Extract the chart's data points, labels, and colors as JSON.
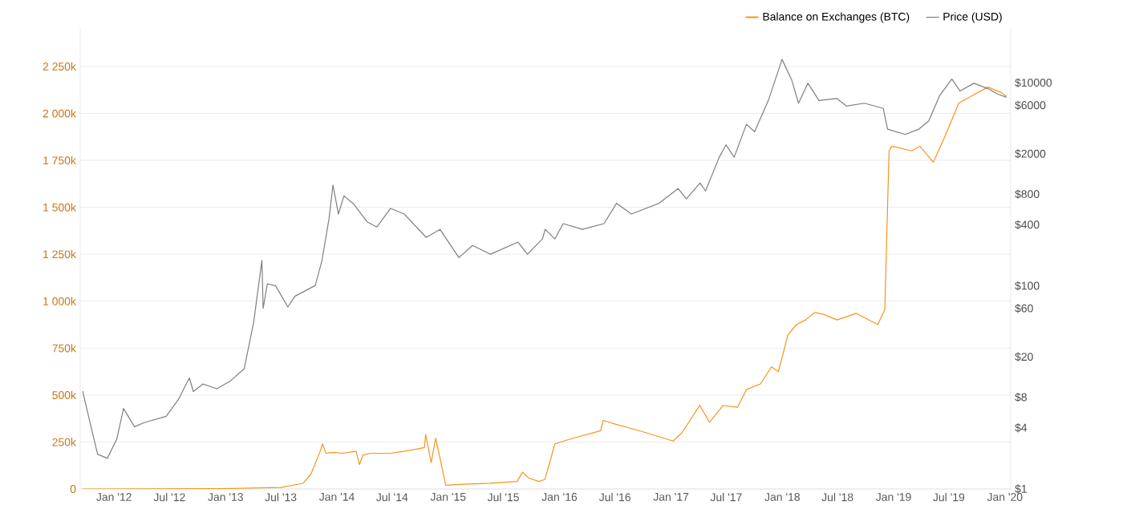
{
  "chart_data": {
    "type": "line",
    "legend": "top right",
    "grid": "y",
    "marker": "none",
    "line_style": "solid",
    "log": "y2",
    "xlim": [
      "2011-09-12",
      "2020-01-20"
    ],
    "xticks": [
      {
        "value": "2012-01-01",
        "label": "Jan '12"
      },
      {
        "value": "2012-07-01",
        "label": "Jul '12"
      },
      {
        "value": "2013-01-01",
        "label": "Jan '13"
      },
      {
        "value": "2013-07-01",
        "label": "Jul '13"
      },
      {
        "value": "2014-01-01",
        "label": "Jan '14"
      },
      {
        "value": "2014-07-01",
        "label": "Jul '14"
      },
      {
        "value": "2015-01-01",
        "label": "Jan '15"
      },
      {
        "value": "2015-07-01",
        "label": "Jul '15"
      },
      {
        "value": "2016-01-01",
        "label": "Jan '16"
      },
      {
        "value": "2016-07-01",
        "label": "Jul '16"
      },
      {
        "value": "2017-01-01",
        "label": "Jan '17"
      },
      {
        "value": "2017-07-01",
        "label": "Jul '17"
      },
      {
        "value": "2018-01-01",
        "label": "Jan '18"
      },
      {
        "value": "2018-07-01",
        "label": "Jul '18"
      },
      {
        "value": "2019-01-01",
        "label": "Jan '19"
      },
      {
        "value": "2019-07-01",
        "label": "Jul '19"
      },
      {
        "value": "2020-01-01",
        "label": "Jan '20"
      }
    ],
    "ylim": [
      0,
      2450000
    ],
    "yticks": [
      {
        "value": 0,
        "label": "0"
      },
      {
        "value": 250000,
        "label": "250k"
      },
      {
        "value": 500000,
        "label": "500k"
      },
      {
        "value": 750000,
        "label": "750k"
      },
      {
        "value": 1000000,
        "label": "1 000k"
      },
      {
        "value": 1250000,
        "label": "1 250k"
      },
      {
        "value": 1500000,
        "label": "1 500k"
      },
      {
        "value": 1750000,
        "label": "1 750k"
      },
      {
        "value": 2000000,
        "label": "2 000k"
      },
      {
        "value": 2250000,
        "label": "2 250k"
      }
    ],
    "y2lim": [
      1,
      34000
    ],
    "y2ticks": [
      {
        "value": 1,
        "label": "$1"
      },
      {
        "value": 4,
        "label": "$4"
      },
      {
        "value": 8,
        "label": "$8"
      },
      {
        "value": 20,
        "label": "$20"
      },
      {
        "value": 60,
        "label": "$60"
      },
      {
        "value": 100,
        "label": "$100"
      },
      {
        "value": 400,
        "label": "$400"
      },
      {
        "value": 800,
        "label": "$800"
      },
      {
        "value": 2000,
        "label": "$2000"
      },
      {
        "value": 6000,
        "label": "$6000"
      },
      {
        "value": 10000,
        "label": "$10000"
      }
    ],
    "series": [
      {
        "name": "Balance on Exchanges (BTC)",
        "color": "#f7931a",
        "x": [
          "2011-09-20",
          "2013-01-01",
          "2013-07-01",
          "2013-09-12",
          "2013-10-08",
          "2013-11-07",
          "2013-11-15",
          "2013-11-26",
          "2013-12-22",
          "2014-01-17",
          "2014-03-05",
          "2014-03-16",
          "2014-03-27",
          "2014-04-22",
          "2014-06-24",
          "2014-08-08",
          "2014-10-15",
          "2014-10-19",
          "2014-11-06",
          "2014-11-21",
          "2014-12-24",
          "2015-02-20",
          "2015-05-18",
          "2015-08-15",
          "2015-09-02",
          "2015-09-20",
          "2015-10-24",
          "2015-11-14",
          "2015-12-17",
          "2016-02-14",
          "2016-05-15",
          "2016-05-23",
          "2016-07-13",
          "2016-08-27",
          "2016-10-10",
          "2017-01-08",
          "2017-02-06",
          "2017-04-05",
          "2017-05-07",
          "2017-06-21",
          "2017-08-07",
          "2017-09-06",
          "2017-10-22",
          "2017-11-26",
          "2017-12-19",
          "2018-01-19",
          "2018-02-16",
          "2018-03-18",
          "2018-04-18",
          "2018-05-16",
          "2018-06-29",
          "2018-09-01",
          "2018-11-10",
          "2018-12-03",
          "2018-12-17",
          "2018-12-26",
          "2019-03-01",
          "2019-03-28",
          "2019-05-11",
          "2019-06-11",
          "2019-07-02",
          "2019-08-03",
          "2019-09-22",
          "2019-11-06",
          "2019-12-21",
          "2020-01-06"
        ],
        "values": [
          0,
          2000,
          8000,
          30000,
          80000,
          200000,
          240000,
          190000,
          195000,
          190000,
          200000,
          130000,
          180000,
          190000,
          190000,
          200000,
          220000,
          290000,
          140000,
          270000,
          20000,
          25000,
          30000,
          40000,
          90000,
          60000,
          40000,
          50000,
          240000,
          270000,
          310000,
          365000,
          340000,
          320000,
          300000,
          255000,
          300000,
          445000,
          355000,
          445000,
          435000,
          530000,
          560000,
          650000,
          625000,
          820000,
          875000,
          900000,
          940000,
          930000,
          900000,
          935000,
          875000,
          955000,
          1800000,
          1825000,
          1800000,
          1825000,
          1740000,
          1850000,
          1930000,
          2055000,
          2100000,
          2140000,
          2110000,
          2090000
        ]
      },
      {
        "name": "Price (USD)",
        "color": "#7f7f7f",
        "axis": "y2",
        "x": [
          "2011-09-20",
          "2011-10-12",
          "2011-11-08",
          "2011-12-10",
          "2012-01-10",
          "2012-02-01",
          "2012-03-08",
          "2012-04-09",
          "2012-06-20",
          "2012-07-30",
          "2012-09-04",
          "2012-09-17",
          "2012-10-19",
          "2012-12-03",
          "2013-01-17",
          "2013-03-03",
          "2013-04-03",
          "2013-04-30",
          "2013-05-04",
          "2013-05-18",
          "2013-06-14",
          "2013-07-24",
          "2013-08-16",
          "2013-10-22",
          "2013-11-13",
          "2013-12-06",
          "2013-12-19",
          "2014-01-06",
          "2014-01-24",
          "2014-02-25",
          "2014-04-11",
          "2014-05-12",
          "2014-06-26",
          "2014-08-10",
          "2014-10-21",
          "2014-12-05",
          "2015-02-05",
          "2015-03-22",
          "2015-05-20",
          "2015-08-18",
          "2015-09-18",
          "2015-11-06",
          "2015-11-15",
          "2015-12-17",
          "2016-01-13",
          "2016-03-16",
          "2016-05-26",
          "2016-07-06",
          "2016-08-24",
          "2016-11-22",
          "2017-01-24",
          "2017-02-20",
          "2017-04-06",
          "2017-04-24",
          "2017-06-08",
          "2017-06-30",
          "2017-07-27",
          "2017-09-05",
          "2017-10-02",
          "2017-11-16",
          "2017-12-31",
          "2018-02-01",
          "2018-02-23",
          "2018-03-26",
          "2018-05-01",
          "2018-06-29",
          "2018-07-30",
          "2018-09-27",
          "2018-11-28",
          "2018-12-12",
          "2019-02-08",
          "2019-03-25",
          "2019-04-26",
          "2019-06-01",
          "2019-07-11",
          "2019-08-07",
          "2019-09-21",
          "2019-11-05",
          "2019-12-06",
          "2020-01-06"
        ],
        "values": [
          9.2,
          4.8,
          2.2,
          2.0,
          3.1,
          6.2,
          4.1,
          4.5,
          5.2,
          7.6,
          12.4,
          9.1,
          10.8,
          9.7,
          11.6,
          15.3,
          44,
          178,
          60,
          105,
          100,
          62,
          79,
          101,
          178,
          456,
          985,
          510,
          770,
          640,
          425,
          380,
          580,
          510,
          300,
          360,
          190,
          250,
          205,
          270,
          205,
          290,
          360,
          290,
          410,
          360,
          410,
          650,
          510,
          650,
          910,
          720,
          1030,
          860,
          1850,
          2450,
          1850,
          3900,
          3300,
          6700,
          17000,
          10600,
          6300,
          9900,
          6700,
          7000,
          5900,
          6300,
          5600,
          3500,
          3100,
          3500,
          4200,
          7500,
          10900,
          8300,
          9900,
          8800,
          7800,
          7200
        ]
      }
    ]
  }
}
